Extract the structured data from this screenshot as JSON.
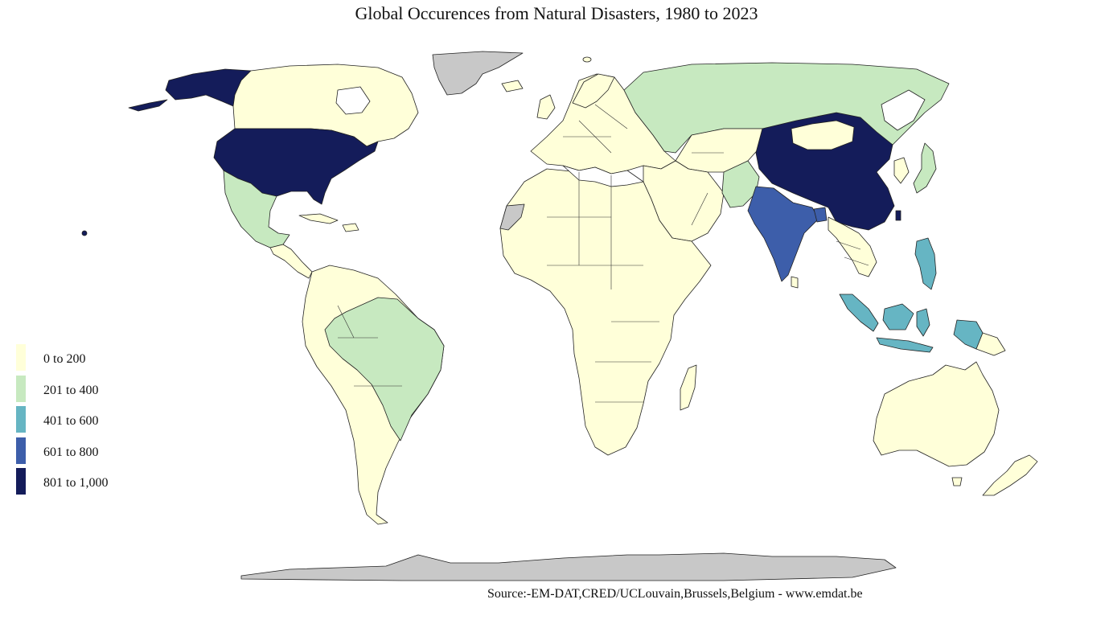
{
  "title": "Global Occurences from Natural Disasters, 1980 to 2023",
  "source": "Source:-EM-DAT,CRED/UCLouvain,Brussels,Belgium - www.emdat.be",
  "colors": {
    "c0_200": "#ffffd9",
    "c201_400": "#c7e9c0",
    "c401_600": "#66b5c3",
    "c601_800": "#3d5eaa",
    "c801_1000": "#141c5a",
    "no_data": "#c8c8c8",
    "background": "#ffffff"
  },
  "legend": [
    {
      "label": "0 to 200",
      "color": "#ffffd9"
    },
    {
      "label": "201 to 400",
      "color": "#c7e9c0"
    },
    {
      "label": "401 to 600",
      "color": "#66b5c3"
    },
    {
      "label": "601 to 800",
      "color": "#3d5eaa"
    },
    {
      "label": "801 to 1,000",
      "color": "#141c5a"
    }
  ]
}
